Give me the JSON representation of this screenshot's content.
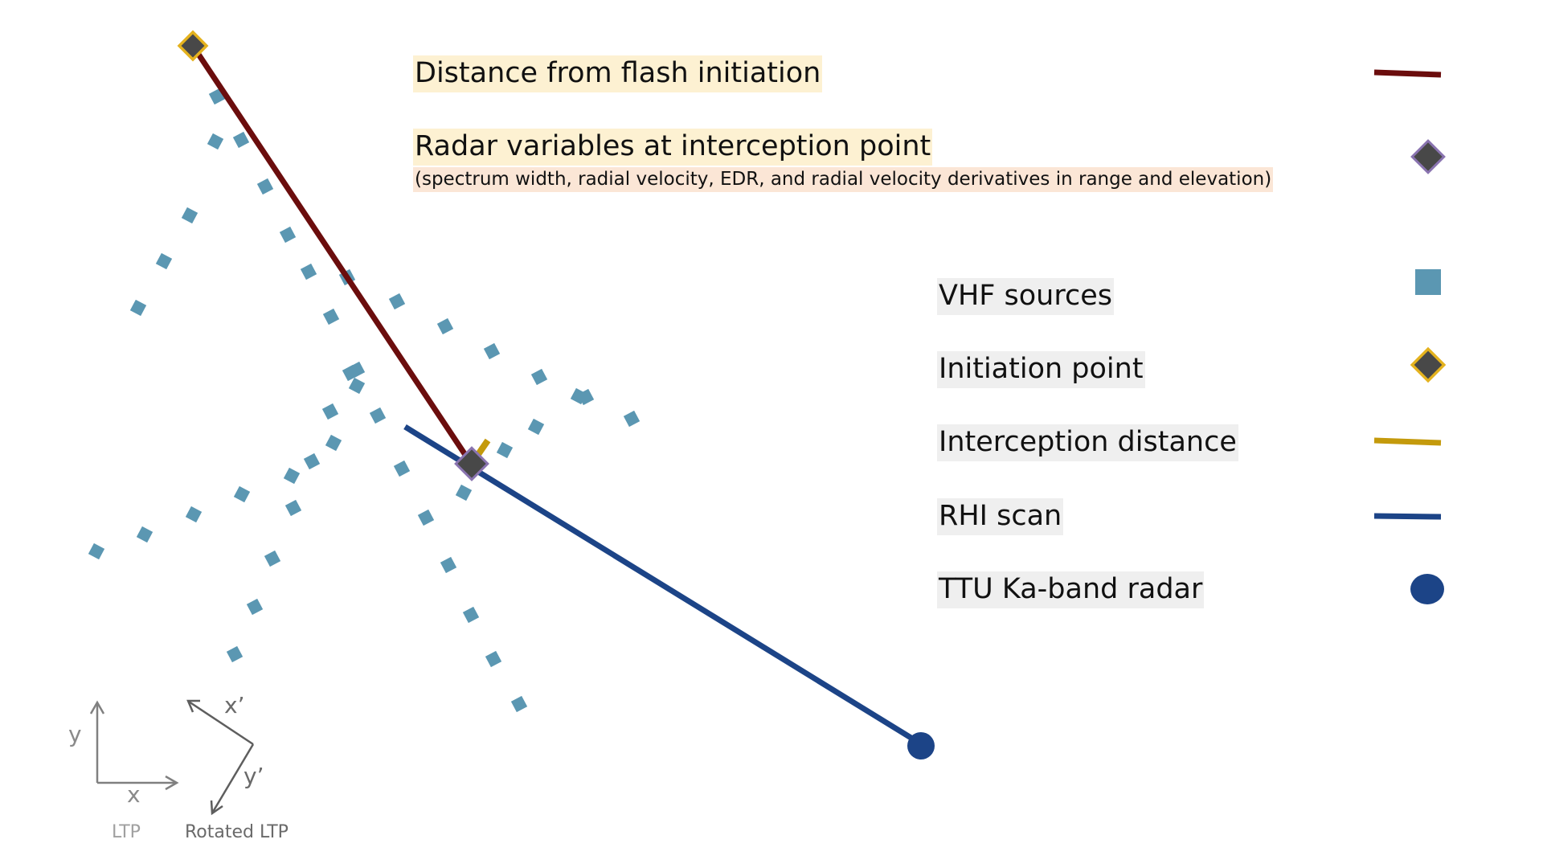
{
  "legend": {
    "distance_from_flash": "Distance from flash initiation",
    "radar_variables": "Radar variables at interception point",
    "radar_variables_detail": "(spectrum width, radial velocity, EDR,  and radial velocity derivatives in range and elevation)",
    "vhf_sources": "VHF sources",
    "initiation_point": "Initiation point",
    "interception_distance": "Interception distance",
    "rhi_scan": "RHI scan",
    "radar": "TTU Ka-band radar"
  },
  "axes": {
    "ltp": {
      "x": "x",
      "y": "y",
      "caption": "LTP"
    },
    "rotated": {
      "x": "x’",
      "y": "y’",
      "caption": "Rotated LTP"
    }
  },
  "colors": {
    "flash_distance": "#6b0d0d",
    "rhi_scan": "#1c4487",
    "interception": "#c49a0c",
    "vhf": "#5b97b2",
    "marker_fill": "#484848",
    "initiation_border": "#e4b21e",
    "interception_border": "#8a74b0",
    "radar": "#1c4487",
    "axis": "#808080"
  }
}
